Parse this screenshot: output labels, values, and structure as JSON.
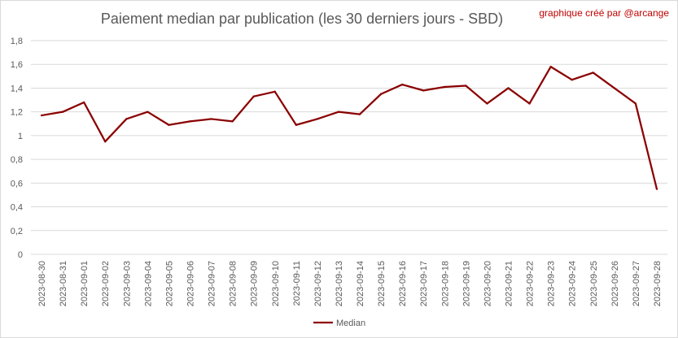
{
  "chart_data": {
    "type": "line",
    "title": "Paiement median par publication (les 30 derniers jours - SBD)",
    "credit": "graphique créé par @arcange",
    "xlabel": "",
    "ylabel": "",
    "ylim": [
      0,
      1.8
    ],
    "yticks": [
      "0",
      "0,2",
      "0,4",
      "0,6",
      "0,8",
      "1",
      "1,2",
      "1,4",
      "1,6",
      "1,8"
    ],
    "grid": true,
    "legend_position": "bottom",
    "categories": [
      "2023-08-30",
      "2023-08-31",
      "2023-09-01",
      "2023-09-02",
      "2023-09-03",
      "2023-09-04",
      "2023-09-05",
      "2023-09-06",
      "2023-09-07",
      "2023-09-08",
      "2023-09-09",
      "2023-09-10",
      "2023-09-11",
      "2023-09-12",
      "2023-09-13",
      "2023-09-14",
      "2023-09-15",
      "2023-09-16",
      "2023-09-17",
      "2023-09-18",
      "2023-09-19",
      "2023-09-20",
      "2023-09-21",
      "2023-09-22",
      "2023-09-23",
      "2023-09-24",
      "2023-09-25",
      "2023-09-26",
      "2023-09-27",
      "2023-09-28"
    ],
    "series": [
      {
        "name": "Median",
        "color": "#8b0000",
        "values": [
          1.17,
          1.2,
          1.28,
          0.95,
          1.14,
          1.2,
          1.09,
          1.12,
          1.14,
          1.12,
          1.33,
          1.37,
          1.09,
          1.14,
          1.2,
          1.18,
          1.35,
          1.43,
          1.38,
          1.41,
          1.42,
          1.27,
          1.4,
          1.27,
          1.58,
          1.47,
          1.53,
          1.4,
          1.27,
          0.55
        ]
      }
    ]
  }
}
